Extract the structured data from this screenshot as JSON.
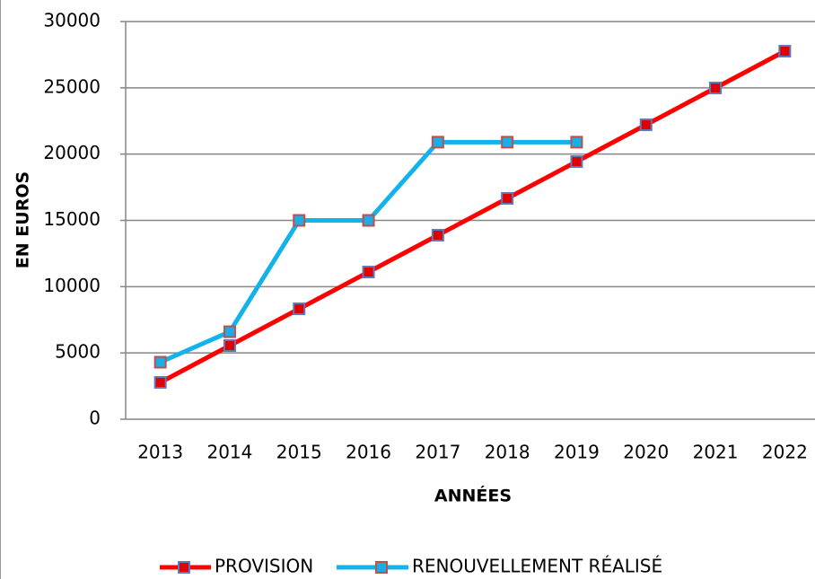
{
  "chart_data": {
    "type": "line",
    "xlabel": "ANNÉES",
    "ylabel": "EN EUROS",
    "categories": [
      "2013",
      "2014",
      "2015",
      "2016",
      "2017",
      "2018",
      "2019",
      "2020",
      "2021",
      "2022"
    ],
    "series": [
      {
        "name": "PROVISION",
        "color": "#ff0000",
        "marker_color": "#e00000",
        "marker_edge": "#5b7bbf",
        "values": [
          2776,
          5553,
          8329,
          11106,
          13882,
          16659,
          19435,
          22212,
          24988,
          27765
        ]
      },
      {
        "name": "RENOUVELLEMENT RÉALISÉ",
        "color": "#12b2ea",
        "marker_color": "#1aaee6",
        "marker_edge": "#c0504d",
        "values": [
          4300,
          6600,
          15000,
          15000,
          20900,
          20900,
          20900,
          null,
          null,
          null
        ]
      }
    ],
    "ylim": [
      0,
      30000
    ],
    "yticks": [
      0,
      5000,
      10000,
      15000,
      20000,
      25000,
      30000
    ],
    "grid": true,
    "legend": "bottom"
  }
}
